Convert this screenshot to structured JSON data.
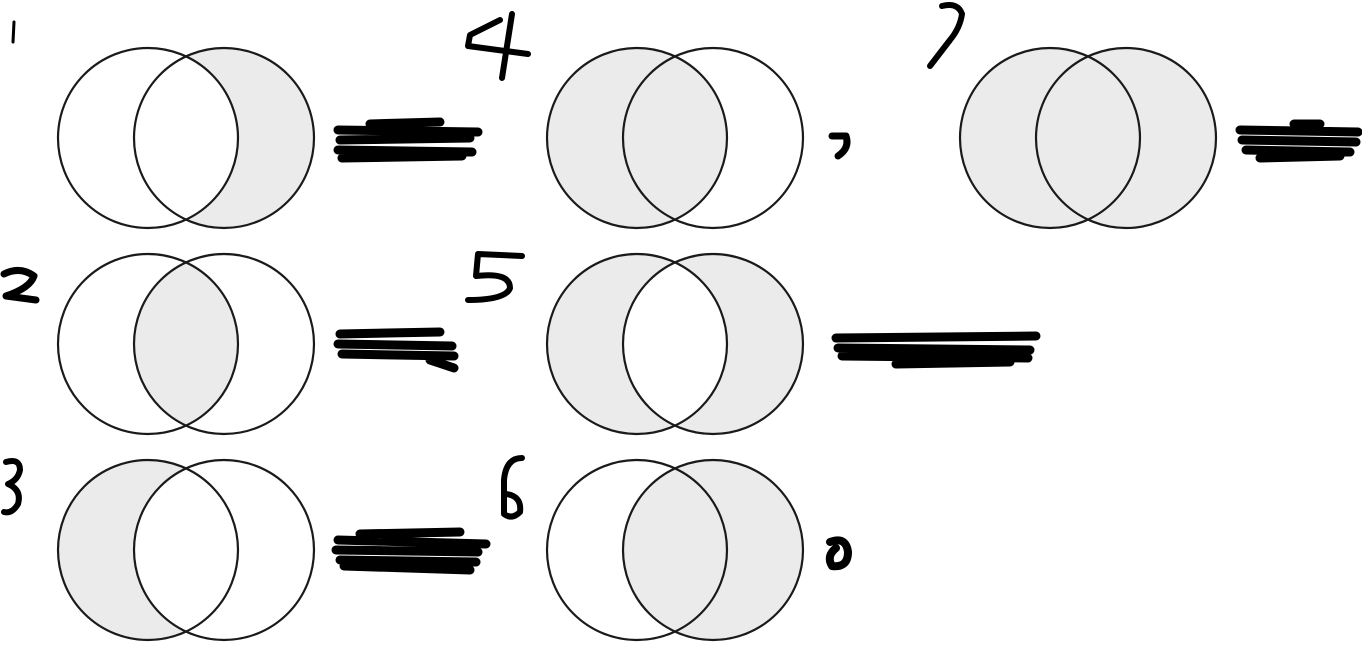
{
  "colors": {
    "shade": "#ebebeb",
    "outline": "#1a1a1a",
    "ink": "#000000",
    "background": "#ffffff"
  },
  "diagrams": [
    {
      "id": 1,
      "label": "1",
      "shaded": {
        "left": false,
        "center": false,
        "right": true
      }
    },
    {
      "id": 2,
      "label": "2",
      "shaded": {
        "left": false,
        "center": true,
        "right": false
      }
    },
    {
      "id": 3,
      "label": "3",
      "shaded": {
        "left": true,
        "center": false,
        "right": false
      }
    },
    {
      "id": 4,
      "label": "4",
      "shaded": {
        "left": true,
        "center": true,
        "right": false
      }
    },
    {
      "id": 5,
      "label": "5",
      "shaded": {
        "left": true,
        "center": false,
        "right": true
      }
    },
    {
      "id": 6,
      "label": "6",
      "shaded": {
        "left": false,
        "center": true,
        "right": true
      }
    },
    {
      "id": 7,
      "label": "7",
      "shaded": {
        "left": true,
        "center": true,
        "right": true
      }
    }
  ],
  "answer_marks": "redacted-handwriting"
}
